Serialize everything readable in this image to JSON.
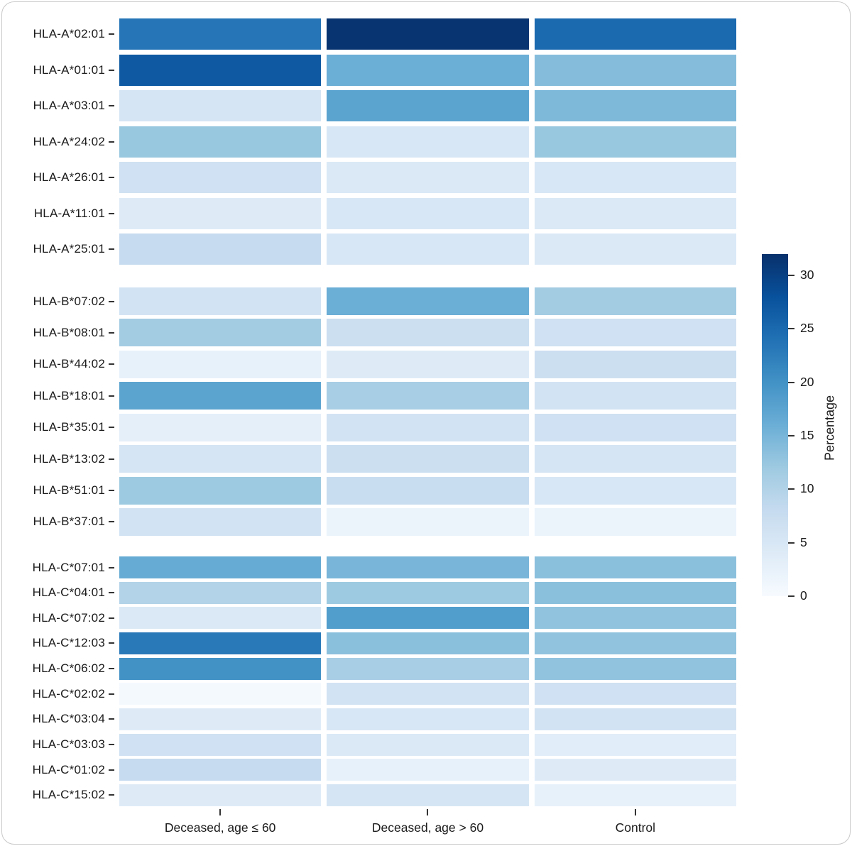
{
  "figure": {
    "background": "#ffffff",
    "border_color": "#c9c9c9"
  },
  "chart_data": {
    "type": "heatmap",
    "title": "",
    "xlabel": "",
    "ylabel": "",
    "columns": [
      "Deceased, age ≤ 60",
      "Deceased, age > 60",
      "Control"
    ],
    "legend": {
      "title": "Percentage",
      "position": "right",
      "ticks": [
        0,
        5,
        10,
        15,
        20,
        25,
        30
      ],
      "domain": [
        0,
        32
      ]
    },
    "colormap": {
      "name": "Blues",
      "stops": [
        [
          0,
          "#f7fbff"
        ],
        [
          4,
          "#deebf7"
        ],
        [
          8,
          "#c6dbef"
        ],
        [
          12,
          "#9ecae1"
        ],
        [
          16,
          "#6baed6"
        ],
        [
          20,
          "#4292c6"
        ],
        [
          24,
          "#2171b5"
        ],
        [
          28,
          "#08519c"
        ],
        [
          32,
          "#08306b"
        ]
      ]
    },
    "groups": [
      {
        "name": "HLA-A",
        "rows": [
          {
            "label": "HLA-A*02:01",
            "values": [
              23.5,
              31.5,
              25
            ]
          },
          {
            "label": "HLA-A*01:01",
            "values": [
              27,
              16,
              14
            ]
          },
          {
            "label": "HLA-A*03:01",
            "values": [
              5.5,
              17.5,
              14.5
            ]
          },
          {
            "label": "HLA-A*24:02",
            "values": [
              12.5,
              5,
              12.5
            ]
          },
          {
            "label": "HLA-A*26:01",
            "values": [
              6.5,
              4.5,
              5
            ]
          },
          {
            "label": "HLA-A*11:01",
            "values": [
              4,
              5,
              4.5
            ]
          },
          {
            "label": "HLA-A*25:01",
            "values": [
              8,
              5,
              4.5
            ]
          }
        ]
      },
      {
        "name": "HLA-B",
        "rows": [
          {
            "label": "HLA-B*07:02",
            "values": [
              6,
              16,
              11.5
            ]
          },
          {
            "label": "HLA-B*08:01",
            "values": [
              11.5,
              7,
              6.5
            ]
          },
          {
            "label": "HLA-B*44:02",
            "values": [
              2.5,
              4,
              7
            ]
          },
          {
            "label": "HLA-B*18:01",
            "values": [
              17.5,
              11,
              6
            ]
          },
          {
            "label": "HLA-B*35:01",
            "values": [
              3,
              6,
              6.5
            ]
          },
          {
            "label": "HLA-B*13:02",
            "values": [
              5.5,
              7,
              5.5
            ]
          },
          {
            "label": "HLA-B*51:01",
            "values": [
              12,
              7.5,
              5
            ]
          },
          {
            "label": "HLA-B*37:01",
            "values": [
              6,
              2,
              2
            ]
          }
        ]
      },
      {
        "name": "HLA-C",
        "rows": [
          {
            "label": "HLA-C*07:01",
            "values": [
              16.5,
              15,
              13.5
            ]
          },
          {
            "label": "HLA-C*04:01",
            "values": [
              10,
              12,
              13.5
            ]
          },
          {
            "label": "HLA-C*07:02",
            "values": [
              4.5,
              18.5,
              13
            ]
          },
          {
            "label": "HLA-C*12:03",
            "values": [
              23,
              13.5,
              13
            ]
          },
          {
            "label": "HLA-C*06:02",
            "values": [
              20,
              11,
              13
            ]
          },
          {
            "label": "HLA-C*02:02",
            "values": [
              0.5,
              6,
              6.5
            ]
          },
          {
            "label": "HLA-C*03:04",
            "values": [
              4,
              5,
              6
            ]
          },
          {
            "label": "HLA-C*03:03",
            "values": [
              6.5,
              4.5,
              3.5
            ]
          },
          {
            "label": "HLA-C*01:02",
            "values": [
              8,
              2.5,
              4
            ]
          },
          {
            "label": "HLA-C*15:02",
            "values": [
              4,
              5.5,
              2.5
            ]
          }
        ]
      }
    ]
  }
}
